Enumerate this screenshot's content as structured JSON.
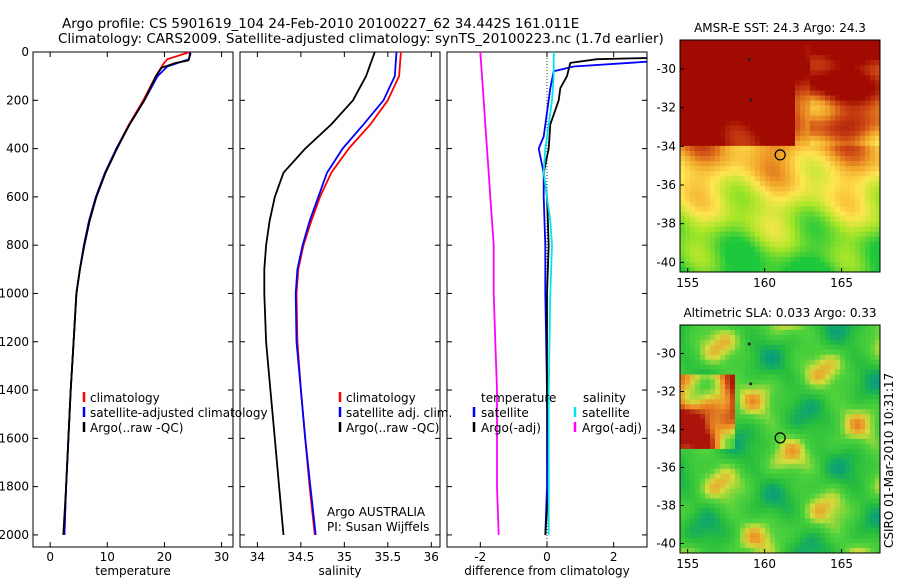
{
  "figure": {
    "title_line1": "Argo profile: CS 5901619_104 24-Feb-2010 20100227_62 34.442S 161.011E",
    "title_line2": "Climatology: CARS2009. Satellite-adjusted climatology: synTS_20100223.nc (1.7d earlier)",
    "side_text": "CSIRO 01-Mar-2010 10:31:17",
    "credit_line1": "Argo AUSTRALIA",
    "credit_line2": "PI: Susan Wijffels"
  },
  "colors": {
    "climatology": "#ff0000",
    "satellite": "#0000ff",
    "argo": "#000000",
    "sat_salinity": "#00e5ee",
    "argo_salinity_adj": "#ff00ff"
  },
  "chart_data": [
    {
      "id": "temperature",
      "type": "line",
      "xlabel": "temperature",
      "ylabel": "",
      "xlim": [
        -3,
        32
      ],
      "ylim": [
        2050,
        0
      ],
      "xticks": [
        0,
        10,
        20,
        30
      ],
      "yticks": [
        0,
        200,
        400,
        600,
        800,
        1000,
        1200,
        1400,
        1600,
        1800,
        2000
      ],
      "legend": [
        "climatology",
        "satellite-adjusted climatology",
        "Argo(..raw -QC)"
      ],
      "legend_position": "bottom-right",
      "series": [
        {
          "name": "climatology",
          "color_key": "climatology",
          "points": [
            [
              24.5,
              0
            ],
            [
              20.5,
              30
            ],
            [
              19.8,
              50
            ],
            [
              18.5,
              100
            ],
            [
              16.3,
              200
            ],
            [
              13.8,
              300
            ],
            [
              11.6,
              400
            ],
            [
              9.6,
              500
            ],
            [
              8.0,
              600
            ],
            [
              6.8,
              700
            ],
            [
              5.9,
              800
            ],
            [
              5.2,
              900
            ],
            [
              4.6,
              1000
            ],
            [
              4.1,
              1200
            ],
            [
              3.6,
              1400
            ],
            [
              3.2,
              1600
            ],
            [
              2.8,
              1800
            ],
            [
              2.5,
              2000
            ]
          ]
        },
        {
          "name": "satellite-adjusted climatology",
          "color_key": "satellite",
          "points": [
            [
              24.5,
              0
            ],
            [
              24.3,
              30
            ],
            [
              20.5,
              60
            ],
            [
              18.8,
              100
            ],
            [
              16.5,
              200
            ],
            [
              13.9,
              300
            ],
            [
              11.6,
              400
            ],
            [
              9.6,
              500
            ],
            [
              8.0,
              600
            ],
            [
              6.8,
              700
            ],
            [
              5.9,
              800
            ],
            [
              5.2,
              900
            ],
            [
              4.6,
              1000
            ],
            [
              4.1,
              1200
            ],
            [
              3.6,
              1400
            ],
            [
              3.2,
              1600
            ],
            [
              2.8,
              1800
            ],
            [
              2.5,
              2000
            ]
          ]
        },
        {
          "name": "Argo(..raw -QC)",
          "color_key": "argo",
          "points": [
            [
              24.6,
              5
            ],
            [
              24.2,
              35
            ],
            [
              22.0,
              45
            ],
            [
              19.5,
              65
            ],
            [
              18.5,
              100
            ],
            [
              16.5,
              200
            ],
            [
              13.9,
              300
            ],
            [
              11.7,
              400
            ],
            [
              9.7,
              500
            ],
            [
              8.1,
              600
            ],
            [
              6.9,
              700
            ],
            [
              6.0,
              800
            ],
            [
              5.2,
              900
            ],
            [
              4.6,
              1000
            ],
            [
              4.1,
              1200
            ],
            [
              3.6,
              1400
            ],
            [
              3.2,
              1600
            ],
            [
              2.8,
              1800
            ],
            [
              2.3,
              2000
            ]
          ]
        }
      ]
    },
    {
      "id": "salinity",
      "type": "line",
      "xlabel": "salinity",
      "ylabel": "",
      "xlim": [
        33.8,
        36.1
      ],
      "ylim": [
        2050,
        0
      ],
      "xticks": [
        34,
        34.5,
        35,
        35.5,
        36
      ],
      "yticks": [
        0,
        200,
        400,
        600,
        800,
        1000,
        1200,
        1400,
        1600,
        1800,
        2000
      ],
      "legend": [
        "climatology",
        "satellite adj. clim.",
        "Argo(..raw -QC)"
      ],
      "legend_position": "bottom-right",
      "series": [
        {
          "name": "climatology",
          "color_key": "climatology",
          "points": [
            [
              35.65,
              0
            ],
            [
              35.63,
              100
            ],
            [
              35.5,
              200
            ],
            [
              35.3,
              300
            ],
            [
              35.05,
              400
            ],
            [
              34.85,
              500
            ],
            [
              34.72,
              600
            ],
            [
              34.62,
              700
            ],
            [
              34.53,
              800
            ],
            [
              34.47,
              900
            ],
            [
              34.45,
              1000
            ],
            [
              34.46,
              1200
            ],
            [
              34.5,
              1400
            ],
            [
              34.55,
              1600
            ],
            [
              34.6,
              1800
            ],
            [
              34.66,
              2000
            ]
          ]
        },
        {
          "name": "satellite adj. clim.",
          "color_key": "satellite",
          "points": [
            [
              35.6,
              0
            ],
            [
              35.58,
              100
            ],
            [
              35.45,
              200
            ],
            [
              35.22,
              300
            ],
            [
              34.98,
              400
            ],
            [
              34.8,
              500
            ],
            [
              34.7,
              600
            ],
            [
              34.6,
              700
            ],
            [
              34.52,
              800
            ],
            [
              34.46,
              900
            ],
            [
              34.44,
              1000
            ],
            [
              34.45,
              1200
            ],
            [
              34.5,
              1400
            ],
            [
              34.55,
              1600
            ],
            [
              34.61,
              1800
            ],
            [
              34.67,
              2000
            ]
          ]
        },
        {
          "name": "Argo(..raw -QC)",
          "color_key": "argo",
          "points": [
            [
              35.35,
              0
            ],
            [
              35.3,
              50
            ],
            [
              35.25,
              100
            ],
            [
              35.1,
              200
            ],
            [
              34.85,
              300
            ],
            [
              34.55,
              400
            ],
            [
              34.3,
              500
            ],
            [
              34.2,
              600
            ],
            [
              34.14,
              700
            ],
            [
              34.1,
              800
            ],
            [
              34.08,
              900
            ],
            [
              34.08,
              1000
            ],
            [
              34.1,
              1200
            ],
            [
              34.15,
              1400
            ],
            [
              34.2,
              1600
            ],
            [
              34.25,
              1800
            ],
            [
              34.3,
              2000
            ]
          ]
        }
      ]
    },
    {
      "id": "difference",
      "type": "line",
      "xlabel": "difference from climatology",
      "ylabel": "",
      "xlim": [
        -3,
        3
      ],
      "ylim": [
        2050,
        0
      ],
      "xticks": [
        -2,
        0,
        2
      ],
      "yticks": [
        0,
        200,
        400,
        600,
        800,
        1000,
        1200,
        1400,
        1600,
        1800,
        2000
      ],
      "legend_groups": [
        {
          "title": "temperature",
          "items": [
            "satellite",
            "Argo(-adj)"
          ]
        },
        {
          "title": "salinity",
          "items": [
            "satellite",
            "Argo(-adj)"
          ]
        }
      ],
      "legend_position": "bottom",
      "series": [
        {
          "name": "temperature satellite",
          "color_key": "satellite",
          "points": [
            [
              3.0,
              40
            ],
            [
              0.8,
              60
            ],
            [
              0.2,
              80
            ],
            [
              0.1,
              150
            ],
            [
              0.0,
              250
            ],
            [
              -0.1,
              350
            ],
            [
              -0.25,
              400
            ],
            [
              -0.1,
              500
            ],
            [
              -0.1,
              600
            ],
            [
              -0.05,
              800
            ],
            [
              -0.05,
              1000
            ],
            [
              0.0,
              1400
            ],
            [
              0.0,
              1800
            ],
            [
              -0.05,
              2000
            ]
          ]
        },
        {
          "name": "temperature Argo(-adj)",
          "color_key": "argo",
          "points": [
            [
              3.0,
              25
            ],
            [
              1.5,
              30
            ],
            [
              0.7,
              45
            ],
            [
              0.6,
              100
            ],
            [
              0.4,
              150
            ],
            [
              0.35,
              200
            ],
            [
              0.1,
              300
            ],
            [
              0.05,
              400
            ],
            [
              -0.1,
              500
            ],
            [
              0.0,
              600
            ],
            [
              0.05,
              800
            ],
            [
              0.0,
              1000
            ],
            [
              0.0,
              1200
            ],
            [
              0.0,
              1400
            ],
            [
              0.05,
              1800
            ],
            [
              -0.05,
              2000
            ]
          ]
        },
        {
          "name": "salinity satellite",
          "color_key": "sat_salinity",
          "points": [
            [
              0.2,
              0
            ],
            [
              0.2,
              100
            ],
            [
              0.15,
              200
            ],
            [
              0.05,
              300
            ],
            [
              -0.05,
              400
            ],
            [
              -0.1,
              500
            ],
            [
              0.0,
              600
            ],
            [
              0.1,
              700
            ],
            [
              0.15,
              800
            ],
            [
              0.1,
              1000
            ],
            [
              0.05,
              1400
            ],
            [
              0.05,
              2000
            ]
          ]
        },
        {
          "name": "salinity Argo(-adj)",
          "color_key": "argo_salinity_adj",
          "points": [
            [
              -2.0,
              0
            ],
            [
              -1.95,
              100
            ],
            [
              -1.9,
              200
            ],
            [
              -1.85,
              300
            ],
            [
              -1.8,
              400
            ],
            [
              -1.75,
              500
            ],
            [
              -1.7,
              600
            ],
            [
              -1.65,
              700
            ],
            [
              -1.6,
              800
            ],
            [
              -1.6,
              1000
            ],
            [
              -1.55,
              1200
            ],
            [
              -1.5,
              1400
            ],
            [
              -1.5,
              1600
            ],
            [
              -1.5,
              1800
            ],
            [
              -1.45,
              2000
            ]
          ]
        }
      ]
    },
    {
      "id": "sst_map",
      "type": "heatmap",
      "title": "AMSR-E SST: 24.3 Argo: 24.3",
      "xlim": [
        154.5,
        167.5
      ],
      "ylim": [
        -40.5,
        -28.5
      ],
      "xticks": [
        155,
        160,
        165
      ],
      "yticks": [
        -30,
        -32,
        -34,
        -36,
        -38,
        -40
      ],
      "argo_position": [
        161.011,
        -34.442
      ],
      "previous_positions": [
        [
          159.0,
          -29.5
        ],
        [
          159.1,
          -31.6
        ]
      ]
    },
    {
      "id": "sla_map",
      "type": "heatmap",
      "title": "Altimetric SLA: 0.033 Argo: 0.33",
      "xlim": [
        154.5,
        167.5
      ],
      "ylim": [
        -40.5,
        -28.5
      ],
      "xticks": [
        155,
        160,
        165
      ],
      "yticks": [
        -30,
        -32,
        -34,
        -36,
        -38,
        -40
      ],
      "argo_position": [
        161.011,
        -34.442
      ],
      "previous_positions": [
        [
          159.0,
          -29.5
        ],
        [
          159.1,
          -31.6
        ]
      ]
    }
  ]
}
